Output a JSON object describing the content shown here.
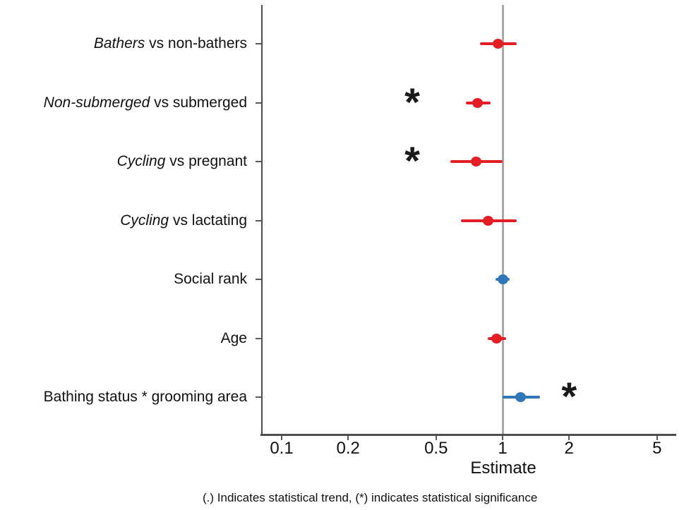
{
  "chart_data": {
    "type": "forest",
    "caption": "(.) Indicates statistical trend, (*) indicates statistical significance",
    "x_axis": {
      "scale": "log10",
      "ticks": [
        0.1,
        0.2,
        0.5,
        1,
        2,
        5
      ],
      "tick_labels": [
        "0.1",
        "0.2",
        "0.5",
        "1",
        "2",
        "5"
      ],
      "label": "Estimate",
      "range": [
        0.08,
        6.2
      ],
      "reference_line": 1
    },
    "rows": [
      {
        "label_italic": "Bathers",
        "label_rest": " vs non-bathers",
        "estimate": 0.95,
        "ci_low": 0.79,
        "ci_high": 1.16,
        "color": "red",
        "sig": "",
        "sig_x": null
      },
      {
        "label_italic": "Non-submerged",
        "label_rest": " vs submerged",
        "estimate": 0.77,
        "ci_low": 0.68,
        "ci_high": 0.88,
        "color": "red",
        "sig": "*",
        "sig_x": 0.39
      },
      {
        "label_italic": "Cycling",
        "label_rest": " vs pregnant",
        "estimate": 0.76,
        "ci_low": 0.58,
        "ci_high": 1.0,
        "color": "red",
        "sig": "*",
        "sig_x": 0.39
      },
      {
        "label_italic": "Cycling",
        "label_rest": " vs lactating",
        "estimate": 0.86,
        "ci_low": 0.65,
        "ci_high": 1.16,
        "color": "red",
        "sig": "",
        "sig_x": null
      },
      {
        "label_italic": "",
        "label_rest": "Social rank",
        "estimate": 1.0,
        "ci_low": 0.93,
        "ci_high": 1.08,
        "color": "blue",
        "sig": "",
        "sig_x": null
      },
      {
        "label_italic": "",
        "label_rest": "Age",
        "estimate": 0.94,
        "ci_low": 0.86,
        "ci_high": 1.04,
        "color": "red",
        "sig": "",
        "sig_x": null
      },
      {
        "label_italic": "",
        "label_rest": "Bathing status * grooming area",
        "estimate": 1.21,
        "ci_low": 1.0,
        "ci_high": 1.48,
        "color": "blue",
        "sig": "*",
        "sig_x": 2.0
      }
    ],
    "colors": {
      "red": "#e41e25",
      "blue": "#2f77b8",
      "reference_line": "#a8a8a8",
      "axis": "#4d4d4d"
    }
  }
}
